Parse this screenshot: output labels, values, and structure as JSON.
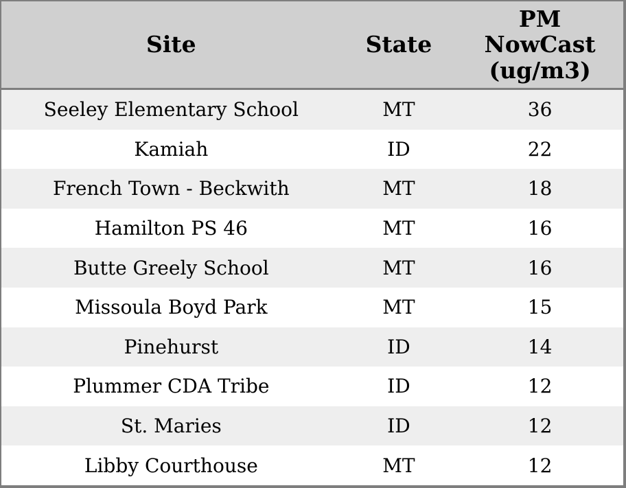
{
  "chart_data": {
    "type": "table",
    "columns": [
      "Site",
      "State",
      "PM NowCast (ug/m3)"
    ],
    "rows": [
      [
        "Seeley Elementary School",
        "MT",
        36
      ],
      [
        "Kamiah",
        "ID",
        22
      ],
      [
        "French Town - Beckwith",
        "MT",
        18
      ],
      [
        "Hamilton PS 46",
        "MT",
        16
      ],
      [
        "Butte Greely School",
        "MT",
        16
      ],
      [
        "Missoula Boyd Park",
        "MT",
        15
      ],
      [
        "Pinehurst",
        "ID",
        14
      ],
      [
        "Plummer CDA Tribe",
        "ID",
        12
      ],
      [
        "St. Maries",
        "ID",
        12
      ],
      [
        "Libby Courthouse",
        "MT",
        12
      ]
    ],
    "title": "",
    "legend": false,
    "grid": false
  },
  "table": {
    "header": {
      "site": "Site",
      "state": "State",
      "pm": "PM\nNowCast\n(ug/m3)"
    }
  },
  "colors": {
    "header_bg": "#d0d0d0",
    "row_stripe_bg": "#eeeeee",
    "row_bg": "#ffffff",
    "border": "#7e7e7e",
    "text": "#000000"
  }
}
